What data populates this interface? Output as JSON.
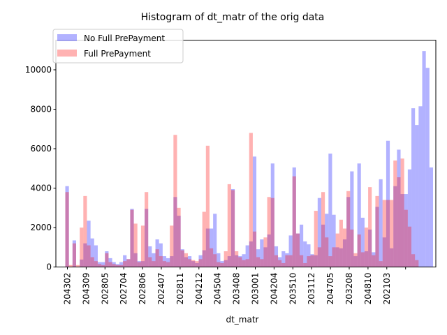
{
  "chart_data": {
    "type": "bar",
    "title": "Histogram of dt_matr of the orig data",
    "xlabel": "dt_matr",
    "ylabel": "",
    "ylim": [
      0,
      11500
    ],
    "y_ticks": [
      0,
      2000,
      4000,
      6000,
      8000,
      10000
    ],
    "x_tick_labels": [
      "204302",
      "204309",
      "202805",
      "202704",
      "202806",
      "202407",
      "202811",
      "204212",
      "204504",
      "203408",
      "203001",
      "204204",
      "203510",
      "203112",
      "204705",
      "203208",
      "204810",
      "202103"
    ],
    "legend_position": "upper left",
    "grid": false,
    "series": [
      {
        "name": "No Full PrePayment",
        "color": "#0000ff",
        "opacity": 0.3,
        "values": [
          4100,
          0,
          1350,
          0,
          380,
          1200,
          2350,
          1450,
          1100,
          250,
          250,
          800,
          450,
          250,
          150,
          250,
          600,
          400,
          2950,
          700,
          300,
          300,
          2950,
          1050,
          700,
          1400,
          1200,
          550,
          450,
          550,
          3550,
          2600,
          900,
          500,
          550,
          300,
          200,
          600,
          850,
          1950,
          1950,
          2700,
          700,
          300,
          350,
          550,
          3950,
          600,
          550,
          650,
          1100,
          1300,
          5600,
          900,
          1400,
          1000,
          1650,
          5250,
          1050,
          500,
          800,
          700,
          1600,
          5050,
          1700,
          2150,
          1300,
          1150,
          650,
          600,
          3500,
          2150,
          2700,
          5750,
          2650,
          1000,
          950,
          1400,
          3550,
          4850,
          550,
          5250,
          2500,
          800,
          1900,
          750,
          3050,
          4450,
          1500,
          6400,
          950,
          4100,
          5950,
          3700,
          3700,
          4950,
          8050,
          7200,
          8150,
          10950,
          10100,
          5050
        ]
      },
      {
        "name": "Full PrePayment",
        "color": "#ff0000",
        "opacity": 0.3,
        "values": [
          3800,
          100,
          1200,
          100,
          2000,
          3600,
          1100,
          500,
          300,
          150,
          100,
          700,
          250,
          150,
          100,
          100,
          300,
          400,
          2900,
          2200,
          250,
          2100,
          3800,
          500,
          300,
          900,
          550,
          300,
          250,
          2100,
          6700,
          3000,
          850,
          700,
          400,
          350,
          300,
          400,
          2800,
          6150,
          950,
          650,
          250,
          200,
          800,
          4200,
          3900,
          800,
          500,
          350,
          400,
          6800,
          1800,
          500,
          400,
          1500,
          3550,
          3500,
          600,
          350,
          200,
          600,
          600,
          4600,
          1700,
          600,
          200,
          550,
          600,
          2850,
          1000,
          3800,
          1500,
          550,
          1000,
          1700,
          2400,
          1950,
          3850,
          1900,
          700,
          1650,
          750,
          2000,
          4050,
          600,
          3600,
          300,
          3400,
          3400,
          3400,
          5400,
          4550,
          5500,
          2900,
          2050,
          650,
          350
        ]
      }
    ]
  }
}
